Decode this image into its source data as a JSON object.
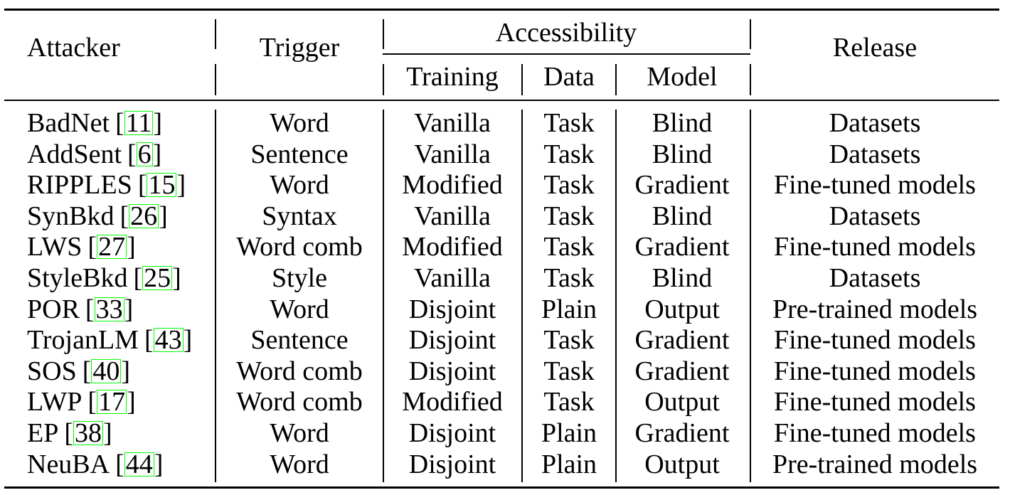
{
  "header": {
    "attacker": "Attacker",
    "trigger": "Trigger",
    "accessibility": "Accessibility",
    "training": "Training",
    "data": "Data",
    "model": "Model",
    "release": "Release"
  },
  "rows": [
    {
      "attacker": "BadNet",
      "cite": "11",
      "trigger": "Word",
      "training": "Vanilla",
      "data": "Task",
      "model": "Blind",
      "release": "Datasets"
    },
    {
      "attacker": "AddSent",
      "cite": "6",
      "trigger": "Sentence",
      "training": "Vanilla",
      "data": "Task",
      "model": "Blind",
      "release": "Datasets"
    },
    {
      "attacker": "RIPPLES",
      "cite": "15",
      "trigger": "Word",
      "training": "Modified",
      "data": "Task",
      "model": "Gradient",
      "release": "Fine-tuned models"
    },
    {
      "attacker": "SynBkd",
      "cite": "26",
      "trigger": "Syntax",
      "training": "Vanilla",
      "data": "Task",
      "model": "Blind",
      "release": "Datasets"
    },
    {
      "attacker": "LWS",
      "cite": "27",
      "trigger": "Word comb",
      "training": "Modified",
      "data": "Task",
      "model": "Gradient",
      "release": "Fine-tuned models"
    },
    {
      "attacker": "StyleBkd",
      "cite": "25",
      "trigger": "Style",
      "training": "Vanilla",
      "data": "Task",
      "model": "Blind",
      "release": "Datasets"
    },
    {
      "attacker": "POR",
      "cite": "33",
      "trigger": "Word",
      "training": "Disjoint",
      "data": "Plain",
      "model": "Output",
      "release": "Pre-trained models"
    },
    {
      "attacker": "TrojanLM",
      "cite": "43",
      "trigger": "Sentence",
      "training": "Disjoint",
      "data": "Task",
      "model": "Gradient",
      "release": "Fine-tuned models"
    },
    {
      "attacker": "SOS",
      "cite": "40",
      "trigger": "Word comb",
      "training": "Disjoint",
      "data": "Task",
      "model": "Gradient",
      "release": "Fine-tuned models"
    },
    {
      "attacker": "LWP",
      "cite": "17",
      "trigger": "Word comb",
      "training": "Modified",
      "data": "Task",
      "model": "Output",
      "release": "Fine-tuned models"
    },
    {
      "attacker": "EP",
      "cite": "38",
      "trigger": "Word",
      "training": "Disjoint",
      "data": "Plain",
      "model": "Gradient",
      "release": "Fine-tuned models"
    },
    {
      "attacker": "NeuBA",
      "cite": "44",
      "trigger": "Word",
      "training": "Disjoint",
      "data": "Plain",
      "model": "Output",
      "release": "Pre-trained models"
    }
  ]
}
